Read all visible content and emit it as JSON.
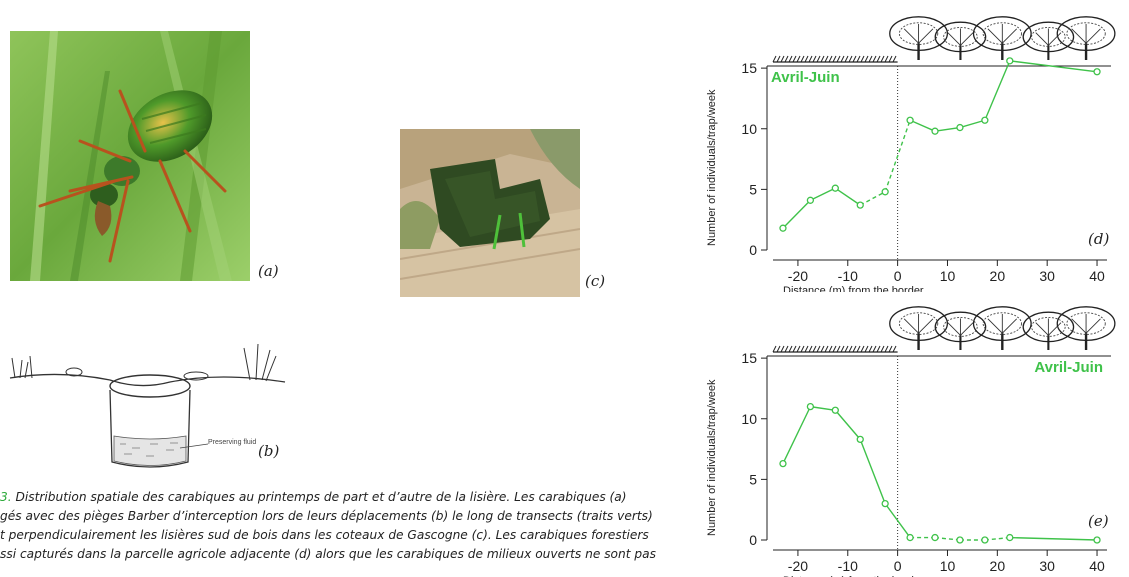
{
  "panels": {
    "a": "(a)",
    "b": "(b)",
    "c": "(c)",
    "d": "(d)",
    "e": "(e)"
  },
  "trap": {
    "fluid_label": "Preserving fluid"
  },
  "caption": {
    "fig_num": "3.",
    "line1": " Distribution spatiale des carabiques au printemps de part et d’autre de la lisière. Les carabiques (a)",
    "line2": "gés avec des pièges Barber d’interception lors de leurs déplacements (b) le long de transects (traits verts)",
    "line3": "t perpendiculairement les lisières sud de bois dans les coteaux de Gascogne (c). Les carabiques forestiers",
    "line4": "ssi capturés dans la parcelle agricole adjacente (d) alors que les carabiques de milieux ouverts ne sont pas"
  },
  "colors": {
    "series": "#3fc24a",
    "caption_accent": "#2eaa3b"
  },
  "chart_data": [
    {
      "type": "line",
      "panel": "(d)",
      "title": "Avril-Juin",
      "xlabel": "Distance (m) from the border",
      "ylabel": "Number of individuals/trap/week",
      "xlim": [
        -25,
        42
      ],
      "ylim": [
        0,
        16
      ],
      "xticks": [
        -20,
        -10,
        0,
        10,
        20,
        30,
        40
      ],
      "yticks": [
        0,
        5,
        10,
        15
      ],
      "border_x": 0,
      "series": [
        {
          "x": [
            -23,
            -17.5,
            -12.5,
            -7.5,
            -2.5,
            2.5,
            7.5,
            12.5,
            17.5,
            22.5,
            40
          ],
          "y": [
            1.8,
            4.1,
            5.1,
            3.7,
            4.8,
            10.7,
            9.8,
            10.1,
            10.7,
            15.6,
            14.7
          ],
          "dashed_segments": [
            3,
            4
          ]
        }
      ],
      "legend": "top-left",
      "grid": false
    },
    {
      "type": "line",
      "panel": "(e)",
      "title": "Avril-Juin",
      "xlabel": "Distance (m) from the border",
      "ylabel": "Number of individuals/trap/week",
      "xlim": [
        -25,
        42
      ],
      "ylim": [
        0,
        16
      ],
      "xticks": [
        -20,
        -10,
        0,
        10,
        20,
        30,
        40
      ],
      "yticks": [
        0,
        5,
        10,
        15
      ],
      "border_x": 0,
      "series": [
        {
          "x": [
            -23,
            -17.5,
            -12.5,
            -7.5,
            -2.5,
            2.5,
            7.5,
            12.5,
            17.5,
            22.5,
            40
          ],
          "y": [
            6.3,
            11.0,
            10.7,
            8.3,
            3.0,
            0.2,
            0.2,
            0.0,
            0.0,
            0.2,
            0.0
          ],
          "dashed_segments": [
            5,
            6,
            7,
            8
          ]
        }
      ],
      "legend": "top-right",
      "grid": false
    }
  ]
}
